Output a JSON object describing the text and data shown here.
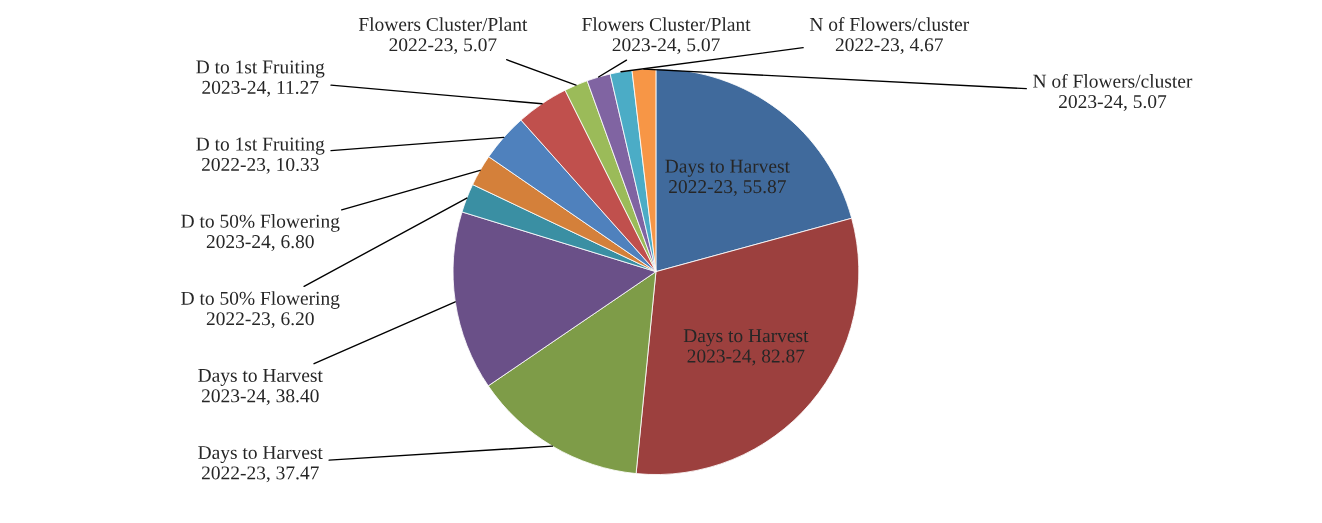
{
  "chart_data": {
    "type": "pie",
    "categories": [
      "Days to Harvest 2022-23",
      "Days to Harvest 2023-24",
      "Days to Harvest 2022-23",
      "Days to Harvest 2023-24",
      "D to 50% Flowering 2022-23",
      "D to 50% Flowering 2023-24",
      "D to 1st Fruiting 2022-23",
      "D to 1st Fruiting 2023-24",
      "Flowers Cluster/Plant 2022-23",
      "Flowers Cluster/Plant 2023-24",
      "N of Flowers/cluster 2022-23",
      "N of Flowers/cluster 2023-24"
    ],
    "values": [
      55.87,
      82.87,
      37.47,
      38.4,
      6.2,
      6.8,
      10.33,
      11.27,
      5.07,
      5.07,
      4.67,
      5.07
    ],
    "value_labels": [
      "55.87",
      "82.87",
      "37.47",
      "38.40",
      "6.20",
      "6.80",
      "10.33",
      "11.27",
      "5.07",
      "5.07",
      "4.67",
      "5.07"
    ],
    "colors": [
      "#406a9c",
      "#9c403e",
      "#7e9c48",
      "#6a5088",
      "#3a8fa3",
      "#d4803a",
      "#4f81bd",
      "#c0504d",
      "#9bbb59",
      "#8064a2",
      "#4bacc6",
      "#f79646"
    ],
    "legend": false
  }
}
